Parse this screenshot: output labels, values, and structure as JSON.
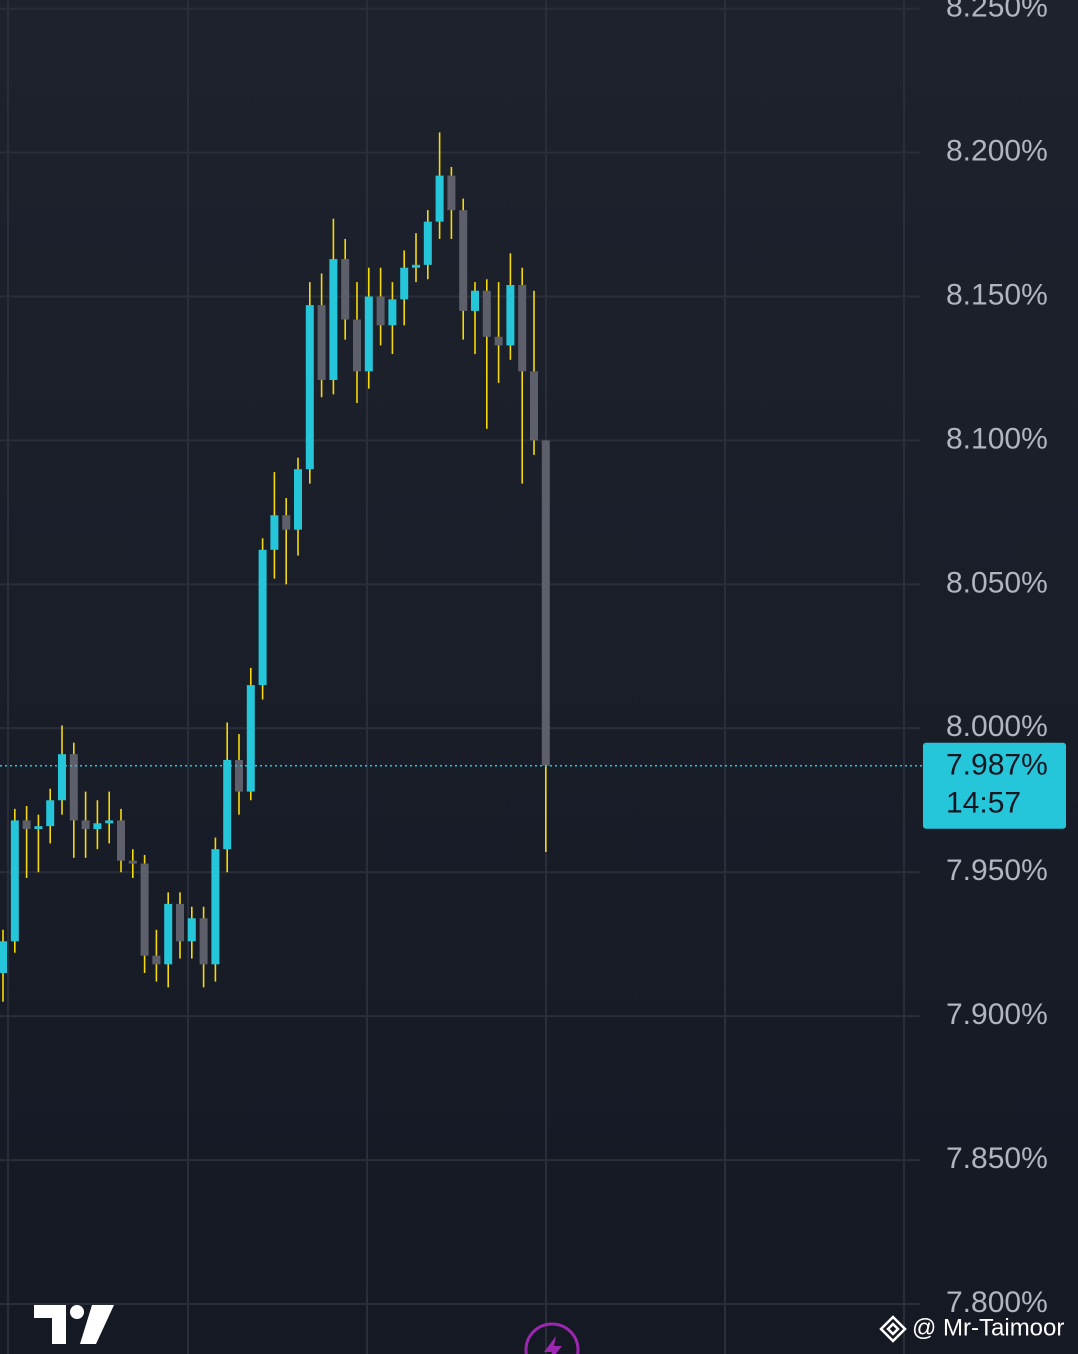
{
  "chart_data": {
    "type": "candlestick",
    "up_color": "#26c6da",
    "down_color": "#5d606b",
    "wick_color": "#f5d90a",
    "ylim": [
      7.8,
      8.253
    ],
    "yticks": [
      {
        "value": 8.25,
        "label": "8.250%"
      },
      {
        "value": 8.2,
        "label": "8.200%"
      },
      {
        "value": 8.15,
        "label": "8.150%"
      },
      {
        "value": 8.1,
        "label": "8.100%"
      },
      {
        "value": 8.05,
        "label": "8.050%"
      },
      {
        "value": 8.0,
        "label": "8.000%"
      },
      {
        "value": 7.95,
        "label": "7.950%"
      },
      {
        "value": 7.9,
        "label": "7.900%"
      },
      {
        "value": 7.85,
        "label": "7.850%"
      },
      {
        "value": 7.8,
        "label": "7.800%"
      }
    ],
    "grid": true,
    "open": [
      7.915,
      7.926,
      7.968,
      7.965,
      7.966,
      7.975,
      7.991,
      7.968,
      7.965,
      7.967,
      7.968,
      7.954,
      7.953,
      7.921,
      7.918,
      7.939,
      7.926,
      7.934,
      7.918,
      7.958,
      7.989,
      7.978,
      8.015,
      8.062,
      8.074,
      8.069,
      8.09,
      8.147,
      8.121,
      8.163,
      8.142,
      8.124,
      8.15,
      8.14,
      8.149,
      8.16,
      8.161,
      8.176,
      8.192,
      8.18,
      8.145,
      8.152,
      8.136,
      8.133,
      8.154,
      8.124,
      8.1
    ],
    "high": [
      7.93,
      7.972,
      7.973,
      7.97,
      7.979,
      8.001,
      7.995,
      7.978,
      7.975,
      7.978,
      7.972,
      7.958,
      7.956,
      7.93,
      7.943,
      7.943,
      7.938,
      7.938,
      7.962,
      8.002,
      7.998,
      8.021,
      8.066,
      8.089,
      8.08,
      8.094,
      8.155,
      8.158,
      8.177,
      8.17,
      8.155,
      8.16,
      8.16,
      8.155,
      8.166,
      8.172,
      8.18,
      8.207,
      8.195,
      8.184,
      8.155,
      8.156,
      8.155,
      8.165,
      8.16,
      8.152,
      8.1
    ],
    "low": [
      7.905,
      7.922,
      7.948,
      7.95,
      7.96,
      7.97,
      7.955,
      7.955,
      7.958,
      7.96,
      7.95,
      7.948,
      7.915,
      7.912,
      7.91,
      7.92,
      7.92,
      7.91,
      7.912,
      7.95,
      7.97,
      7.975,
      8.01,
      8.052,
      8.05,
      8.06,
      8.085,
      8.115,
      8.116,
      8.135,
      8.113,
      8.118,
      8.133,
      8.13,
      8.14,
      8.155,
      8.156,
      8.17,
      8.17,
      8.135,
      8.13,
      8.104,
      8.12,
      8.128,
      8.085,
      8.095,
      7.957
    ],
    "close": [
      7.926,
      7.968,
      7.965,
      7.966,
      7.975,
      7.991,
      7.968,
      7.965,
      7.967,
      7.968,
      7.954,
      7.953,
      7.921,
      7.918,
      7.939,
      7.926,
      7.934,
      7.918,
      7.958,
      7.989,
      7.978,
      8.015,
      8.062,
      8.074,
      8.069,
      8.09,
      8.147,
      8.121,
      8.163,
      8.142,
      8.124,
      8.15,
      8.14,
      8.149,
      8.16,
      8.161,
      8.176,
      8.192,
      8.18,
      8.145,
      8.152,
      8.136,
      8.133,
      8.154,
      8.124,
      8.1,
      7.987
    ],
    "last_price": {
      "value": 7.987,
      "label": "7.987%"
    },
    "countdown": "14:57",
    "price_line_color": "#26c6da",
    "watermark": "@ Mr-Taimoor"
  }
}
